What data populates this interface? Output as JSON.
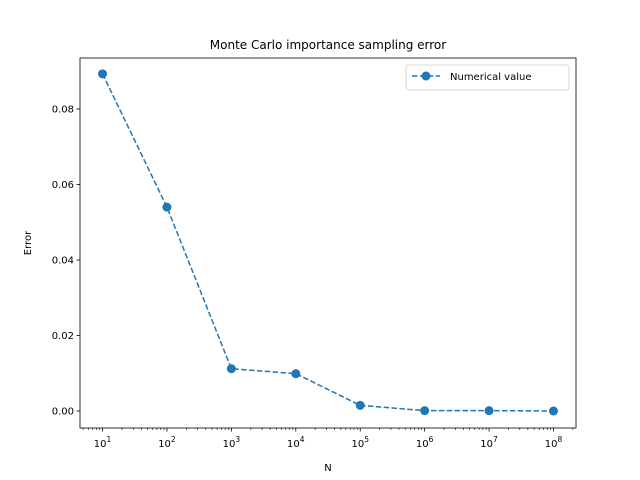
{
  "chart_data": {
    "type": "line",
    "title": "Monte Carlo importance sampling error",
    "xlabel": "N",
    "ylabel": "Error",
    "x_scale": "log",
    "x_tick_exponents": [
      1,
      2,
      3,
      4,
      5,
      6,
      7,
      8
    ],
    "x_tick_base": "10",
    "y_ticks": [
      "0.00",
      "0.02",
      "0.04",
      "0.06",
      "0.08"
    ],
    "y_tick_values": [
      0.0,
      0.02,
      0.04,
      0.06,
      0.08
    ],
    "ylim": [
      -0.0045,
      0.0935
    ],
    "xlim": [
      4.47,
      223600000.0
    ],
    "grid": false,
    "legend_position": "top-right",
    "series": [
      {
        "name": "Numerical value",
        "color": "#1f77b4",
        "line_style": "dashed",
        "marker": "circle",
        "x": [
          10,
          100,
          1000,
          10000,
          100000,
          1000000,
          10000000,
          100000000
        ],
        "y": [
          0.0893,
          0.054,
          0.0112,
          0.0099,
          0.0015,
          0.0001,
          0.0001,
          0.0
        ]
      }
    ]
  }
}
